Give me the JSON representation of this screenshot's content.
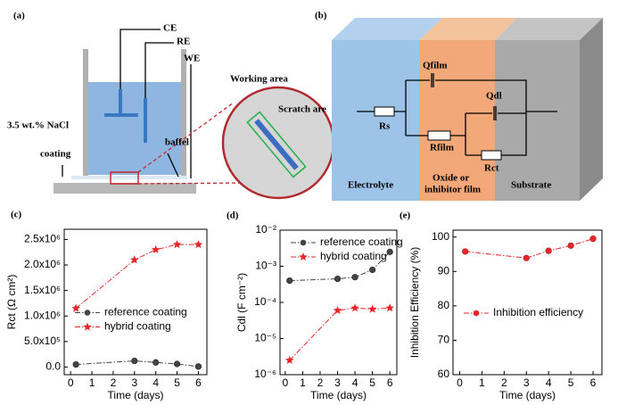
{
  "diagram_a": {
    "label": "(a)",
    "ce": "CE",
    "re": "RE",
    "we": "WE",
    "solution": "3.5 wt.% NaCl",
    "baffel": "baffel",
    "coating": "coating",
    "working": "Working area",
    "scratch": "Scratch are"
  },
  "diagram_b": {
    "label": "(b)",
    "qfilm": "Qfilm",
    "qdl": "Qdl",
    "rs": "Rs",
    "rfilm": "Rfilm",
    "rct": "Rct",
    "electrolyte": "Electrolyte",
    "oxide1": "Oxide or",
    "oxide2": "inhibitor film",
    "substrate": "Substrate"
  },
  "chart_data": [
    {
      "type": "line",
      "label": "(c)",
      "x_label": "Time (days)",
      "y_label": "Rct (Ω cm²)",
      "x": [
        0.25,
        3,
        4,
        5,
        6
      ],
      "series": [
        {
          "name": "reference coating",
          "color": "#444444",
          "marker": "circle",
          "values": [
            50000,
            120000,
            90000,
            60000,
            10000
          ]
        },
        {
          "name": "hybrid coating",
          "color": "#e8262a",
          "marker": "star",
          "values": [
            1150000,
            2100000,
            2300000,
            2400000,
            2400000
          ]
        }
      ],
      "xlim": [
        -0.3,
        6.4
      ],
      "xticks": [
        0,
        1,
        2,
        3,
        4,
        5,
        6
      ],
      "ylim": [
        -150000,
        2700000
      ],
      "yticks": [
        {
          "value": 0,
          "label": "0.0"
        },
        {
          "value": 500000,
          "label": "5.0x10⁵"
        },
        {
          "value": 1000000,
          "label": "1.0x10⁶"
        },
        {
          "value": 1500000,
          "label": "1.5x10⁶"
        },
        {
          "value": 2000000,
          "label": "2.0x10⁶"
        },
        {
          "value": 2500000,
          "label": "2.5x10⁶"
        }
      ],
      "legend": "center right"
    },
    {
      "type": "line",
      "label": "(d)",
      "x_label": "Time (days)",
      "y_label": "Cdl (F cm⁻²)",
      "x": [
        0.25,
        3,
        4,
        5,
        6
      ],
      "log_y": true,
      "series": [
        {
          "name": "reference coating",
          "color": "#444444",
          "marker": "circle",
          "values": [
            0.0004,
            0.00045,
            0.0005,
            0.0008,
            0.0025
          ]
        },
        {
          "name": "hybrid coating",
          "color": "#e8262a",
          "marker": "star",
          "values": [
            2.5e-06,
            6e-05,
            7e-05,
            6.5e-05,
            7e-05
          ]
        }
      ],
      "xlim": [
        -0.3,
        6.4
      ],
      "xticks": [
        0,
        1,
        2,
        3,
        4,
        5,
        6
      ],
      "ylim": [
        1e-06,
        0.01
      ],
      "yticks": [
        {
          "value": 1e-06,
          "label": "10⁻⁶"
        },
        {
          "value": 1e-05,
          "label": "10⁻⁵"
        },
        {
          "value": 0.0001,
          "label": "10⁻⁴"
        },
        {
          "value": 0.001,
          "label": "10⁻³"
        },
        {
          "value": 0.01,
          "label": "10⁻²"
        }
      ],
      "legend": "upper left"
    },
    {
      "type": "line",
      "label": "(e)",
      "x_label": "Time (days)",
      "y_label": "Inhibition Efficiency (%)",
      "x": [
        0.25,
        3,
        4,
        5,
        6
      ],
      "series": [
        {
          "name": "Inhibition efficiency",
          "color": "#e8262a",
          "marker": "circle",
          "values": [
            95.8,
            93.9,
            96,
            97.5,
            99.5
          ]
        }
      ],
      "xlim": [
        -0.3,
        6.4
      ],
      "xticks": [
        0,
        1,
        2,
        3,
        4,
        5,
        6
      ],
      "ylim": [
        60,
        102
      ],
      "yticks": [
        60,
        70,
        80,
        90,
        100
      ],
      "legend": "center right"
    }
  ]
}
